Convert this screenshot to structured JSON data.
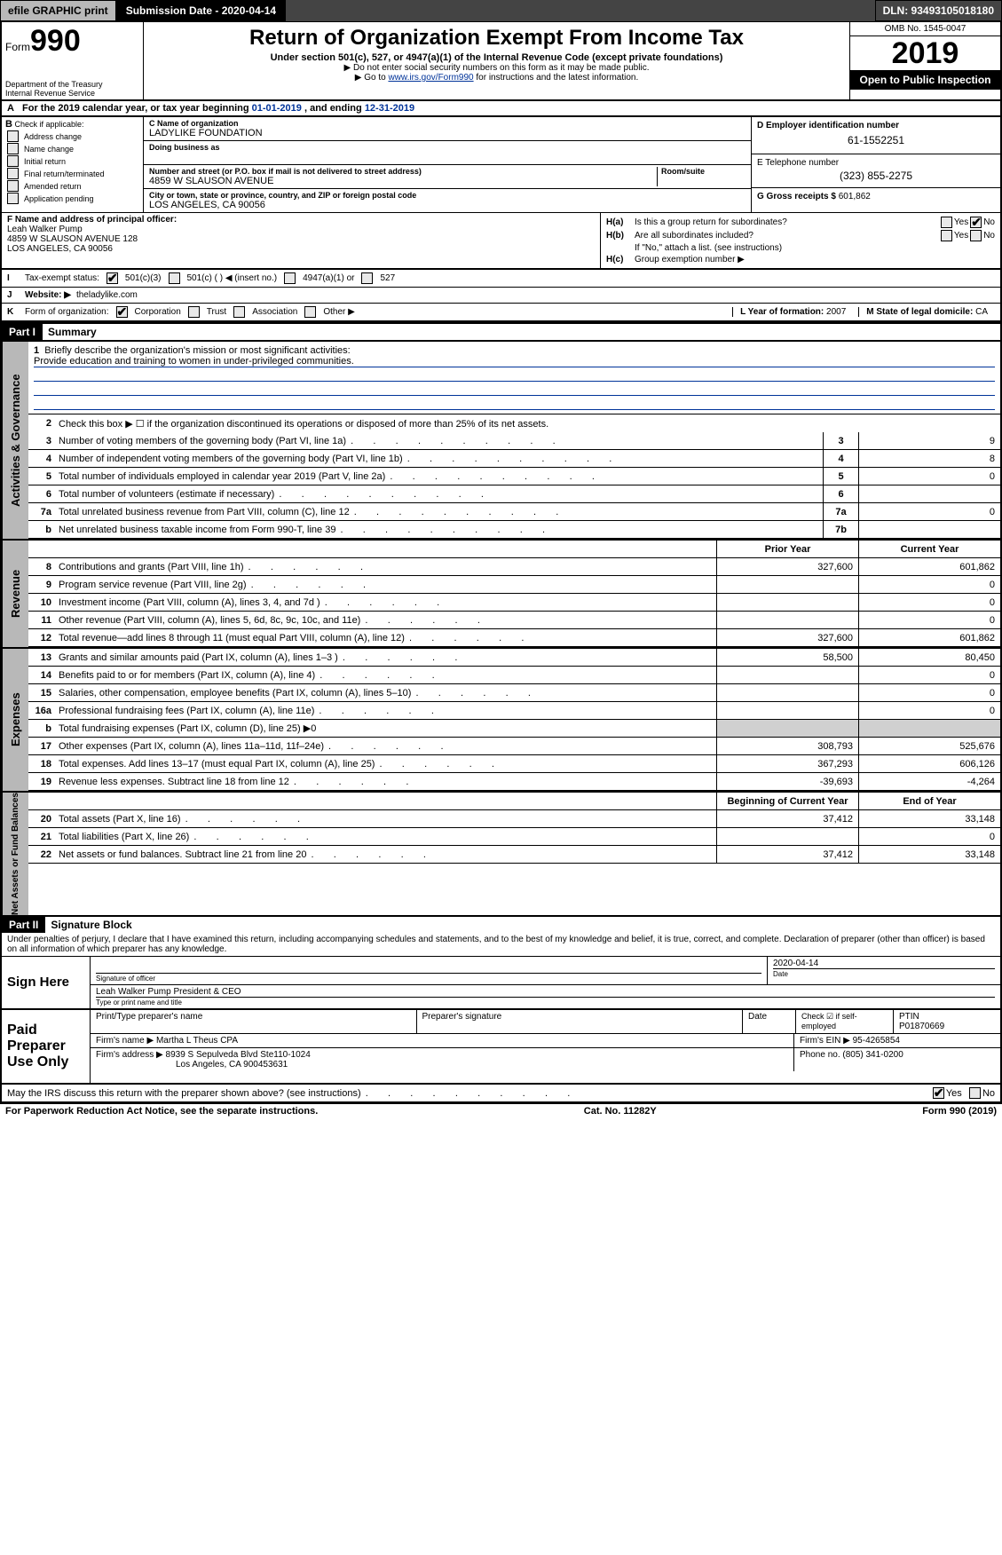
{
  "topbar": {
    "efile": "efile GRAPHIC print",
    "submission": "Submission Date - 2020-04-14",
    "dln": "DLN: 93493105018180"
  },
  "header": {
    "form_word": "Form",
    "form_num": "990",
    "dept": "Department of the Treasury",
    "irs": "Internal Revenue Service",
    "title": "Return of Organization Exempt From Income Tax",
    "sub": "Under section 501(c), 527, or 4947(a)(1) of the Internal Revenue Code (except private foundations)",
    "sub2a": "▶ Do not enter social security numbers on this form as it may be made public.",
    "sub2b_pre": "▶ Go to ",
    "sub2b_link": "www.irs.gov/Form990",
    "sub2b_post": " for instructions and the latest information.",
    "omb": "OMB No. 1545-0047",
    "year": "2019",
    "open": "Open to Public Inspection"
  },
  "rowA": {
    "letter": "A",
    "text": "For the 2019 calendar year, or tax year beginning ",
    "begin": "01-01-2019",
    "mid": " , and ending ",
    "end": "12-31-2019"
  },
  "colB": {
    "letter": "B",
    "label": "Check if applicable:",
    "opts": [
      "Address change",
      "Name change",
      "Initial return",
      "Final return/terminated",
      "Amended return",
      "Application pending"
    ]
  },
  "colC": {
    "name_label": "C Name of organization",
    "name": "LADYLIKE FOUNDATION",
    "dba_label": "Doing business as",
    "addr_label": "Number and street (or P.O. box if mail is not delivered to street address)",
    "addr": "4859 W SLAUSON AVENUE",
    "room_label": "Room/suite",
    "city_label": "City or town, state or province, country, and ZIP or foreign postal code",
    "city": "LOS ANGELES, CA  90056"
  },
  "colD": {
    "ein_label": "D Employer identification number",
    "ein": "61-1552251",
    "phone_label": "E Telephone number",
    "phone": "(323) 855-2275",
    "gross_label": "G Gross receipts $ ",
    "gross": "601,862"
  },
  "rowF": {
    "label": "F Name and address of principal officer:",
    "name": "Leah Walker Pump",
    "addr1": "4859 W SLAUSON AVENUE 128",
    "addr2": "LOS ANGELES, CA  90056"
  },
  "rowH": {
    "a_label": "H(a)",
    "a_text": "Is this a group return for subordinates?",
    "b_label": "H(b)",
    "b_text": "Are all subordinates included?",
    "b_note": "If \"No,\" attach a list. (see instructions)",
    "c_label": "H(c)",
    "c_text": "Group exemption number ▶",
    "yes": "Yes",
    "no": "No"
  },
  "rowI": {
    "letter": "I",
    "label": "Tax-exempt status:",
    "opts": [
      "501(c)(3)",
      "501(c) (  ) ◀ (insert no.)",
      "4947(a)(1) or",
      "527"
    ]
  },
  "rowJ": {
    "letter": "J",
    "label": "Website: ▶",
    "value": "theladylike.com"
  },
  "rowK": {
    "letter": "K",
    "label": "Form of organization:",
    "opts": [
      "Corporation",
      "Trust",
      "Association",
      "Other ▶"
    ],
    "L_label": "L Year of formation: ",
    "L_val": "2007",
    "M_label": "M State of legal domicile: ",
    "M_val": "CA"
  },
  "part1": {
    "header": "Part I",
    "title": "Summary"
  },
  "governance": {
    "tab": "Activities & Governance",
    "l1_label": "Briefly describe the organization's mission or most significant activities:",
    "l1_val": "Provide education and training to women in under-privileged communities.",
    "l2": "Check this box ▶ ☐ if the organization discontinued its operations or disposed of more than 25% of its net assets.",
    "rows": [
      {
        "n": "3",
        "d": "Number of voting members of the governing body (Part VI, line 1a)",
        "box": "3",
        "v": "9"
      },
      {
        "n": "4",
        "d": "Number of independent voting members of the governing body (Part VI, line 1b)",
        "box": "4",
        "v": "8"
      },
      {
        "n": "5",
        "d": "Total number of individuals employed in calendar year 2019 (Part V, line 2a)",
        "box": "5",
        "v": "0"
      },
      {
        "n": "6",
        "d": "Total number of volunteers (estimate if necessary)",
        "box": "6",
        "v": ""
      },
      {
        "n": "7a",
        "d": "Total unrelated business revenue from Part VIII, column (C), line 12",
        "box": "7a",
        "v": "0"
      },
      {
        "n": "b",
        "d": "Net unrelated business taxable income from Form 990-T, line 39",
        "box": "7b",
        "v": ""
      }
    ]
  },
  "revenue": {
    "tab": "Revenue",
    "header_prior": "Prior Year",
    "header_current": "Current Year",
    "rows": [
      {
        "n": "8",
        "d": "Contributions and grants (Part VIII, line 1h)",
        "p": "327,600",
        "c": "601,862"
      },
      {
        "n": "9",
        "d": "Program service revenue (Part VIII, line 2g)",
        "p": "",
        "c": "0"
      },
      {
        "n": "10",
        "d": "Investment income (Part VIII, column (A), lines 3, 4, and 7d )",
        "p": "",
        "c": "0"
      },
      {
        "n": "11",
        "d": "Other revenue (Part VIII, column (A), lines 5, 6d, 8c, 9c, 10c, and 11e)",
        "p": "",
        "c": "0"
      },
      {
        "n": "12",
        "d": "Total revenue—add lines 8 through 11 (must equal Part VIII, column (A), line 12)",
        "p": "327,600",
        "c": "601,862"
      }
    ]
  },
  "expenses": {
    "tab": "Expenses",
    "rows": [
      {
        "n": "13",
        "d": "Grants and similar amounts paid (Part IX, column (A), lines 1–3 )",
        "p": "58,500",
        "c": "80,450"
      },
      {
        "n": "14",
        "d": "Benefits paid to or for members (Part IX, column (A), line 4)",
        "p": "",
        "c": "0"
      },
      {
        "n": "15",
        "d": "Salaries, other compensation, employee benefits (Part IX, column (A), lines 5–10)",
        "p": "",
        "c": "0"
      },
      {
        "n": "16a",
        "d": "Professional fundraising fees (Part IX, column (A), line 11e)",
        "p": "",
        "c": "0"
      },
      {
        "n": "b",
        "d": "Total fundraising expenses (Part IX, column (D), line 25) ▶0",
        "p": "GRAY",
        "c": "GRAY"
      },
      {
        "n": "17",
        "d": "Other expenses (Part IX, column (A), lines 11a–11d, 11f–24e)",
        "p": "308,793",
        "c": "525,676"
      },
      {
        "n": "18",
        "d": "Total expenses. Add lines 13–17 (must equal Part IX, column (A), line 25)",
        "p": "367,293",
        "c": "606,126"
      },
      {
        "n": "19",
        "d": "Revenue less expenses. Subtract line 18 from line 12",
        "p": "-39,693",
        "c": "-4,264"
      }
    ]
  },
  "netassets": {
    "tab": "Net Assets or Fund Balances",
    "header_begin": "Beginning of Current Year",
    "header_end": "End of Year",
    "rows": [
      {
        "n": "20",
        "d": "Total assets (Part X, line 16)",
        "p": "37,412",
        "c": "33,148"
      },
      {
        "n": "21",
        "d": "Total liabilities (Part X, line 26)",
        "p": "",
        "c": "0"
      },
      {
        "n": "22",
        "d": "Net assets or fund balances. Subtract line 21 from line 20",
        "p": "37,412",
        "c": "33,148"
      }
    ]
  },
  "part2": {
    "header": "Part II",
    "title": "Signature Block"
  },
  "perjury": "Under penalties of perjury, I declare that I have examined this return, including accompanying schedules and statements, and to the best of my knowledge and belief, it is true, correct, and complete. Declaration of preparer (other than officer) is based on all information of which preparer has any knowledge.",
  "sign": {
    "here": "Sign Here",
    "sig_label": "Signature of officer",
    "date": "2020-04-14",
    "date_label": "Date",
    "name": "Leah Walker Pump  President & CEO",
    "name_label": "Type or print name and title"
  },
  "paid": {
    "title": "Paid Preparer Use Only",
    "col1": "Print/Type preparer's name",
    "col2": "Preparer's signature",
    "col3": "Date",
    "col4_label": "Check ☑ if self-employed",
    "ptin_label": "PTIN",
    "ptin": "P01870669",
    "firm_name_label": "Firm's name    ▶ ",
    "firm_name": "Martha L Theus CPA",
    "firm_ein_label": "Firm's EIN ▶ ",
    "firm_ein": "95-4265854",
    "firm_addr_label": "Firm's address ▶ ",
    "firm_addr1": "8939 S Sepulveda Blvd Ste110-1024",
    "firm_addr2": "Los Angeles, CA  900453631",
    "phone_label": "Phone no. ",
    "phone": "(805) 341-0200"
  },
  "discuss": {
    "text": "May the IRS discuss this return with the preparer shown above? (see instructions)",
    "yes": "Yes",
    "no": "No"
  },
  "footer": {
    "left": "For Paperwork Reduction Act Notice, see the separate instructions.",
    "mid": "Cat. No. 11282Y",
    "right_pre": "Form ",
    "right_bold": "990",
    "right_post": " (2019)"
  }
}
